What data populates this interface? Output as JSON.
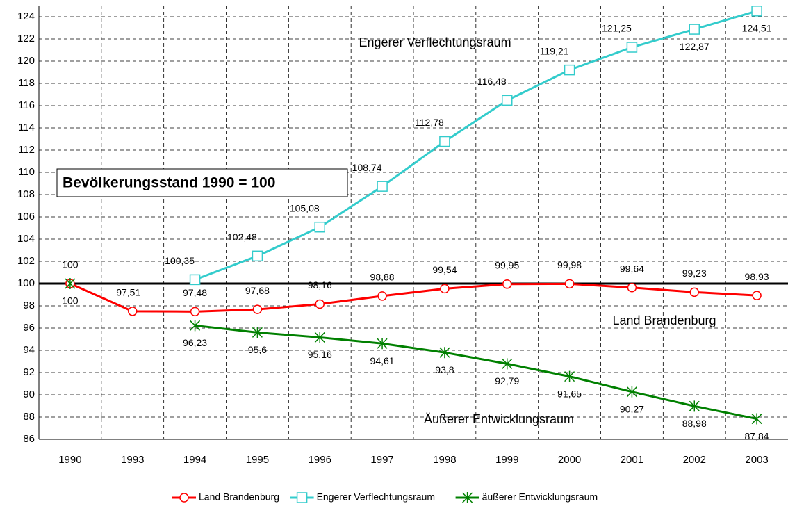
{
  "chart_data": {
    "type": "line",
    "categories": [
      "1990",
      "1993",
      "1994",
      "1995",
      "1996",
      "1997",
      "1998",
      "1999",
      "2000",
      "2001",
      "2002",
      "2003"
    ],
    "series": [
      {
        "name": "Land Brandenburg",
        "color": "#ff0000",
        "marker": "circle",
        "values": [
          100,
          97.51,
          97.48,
          97.68,
          98.16,
          98.88,
          99.54,
          99.95,
          99.98,
          99.64,
          99.23,
          98.93
        ],
        "value_labels": [
          "100",
          "97,51",
          "97,48",
          "97,68",
          "98,16",
          "98,88",
          "99,54",
          "99,95",
          "99,98",
          "99,64",
          "99,23",
          "98,93"
        ]
      },
      {
        "name": "Engerer Verflechtungsraum",
        "color": "#33cccc",
        "marker": "square",
        "values": [
          null,
          null,
          100.35,
          102.48,
          105.08,
          108.74,
          112.78,
          116.48,
          119.21,
          121.25,
          122.87,
          124.51
        ],
        "value_labels": [
          null,
          null,
          "100,35",
          "102,48",
          "105,08",
          "108,74",
          "112,78",
          "116,48",
          "119,21",
          "121,25",
          "122,87",
          "124,51"
        ]
      },
      {
        "name": "äußerer Entwicklungsraum",
        "color": "#008000",
        "marker": "star",
        "values": [
          100,
          null,
          96.23,
          95.6,
          95.16,
          94.61,
          93.8,
          92.79,
          91.65,
          90.27,
          88.98,
          87.84
        ],
        "value_labels": [
          "100",
          null,
          "96,23",
          "95,6",
          "95,16",
          "94,61",
          "93,8",
          "92,79",
          "91,65",
          "90,27",
          "88,98",
          "87,84"
        ]
      }
    ],
    "ylim": [
      86,
      125
    ],
    "yticks": [
      86,
      88,
      90,
      92,
      94,
      96,
      98,
      100,
      102,
      104,
      106,
      108,
      110,
      112,
      114,
      116,
      118,
      120,
      122,
      124
    ],
    "reference_line": 100,
    "grid": true,
    "legend": "bottom",
    "annotations": [
      "Bevölkerungsstand 1990 = 100",
      "Engerer Verflechtungsraum",
      "Land Brandenburg",
      "Äußerer Entwicklungsraum"
    ]
  }
}
